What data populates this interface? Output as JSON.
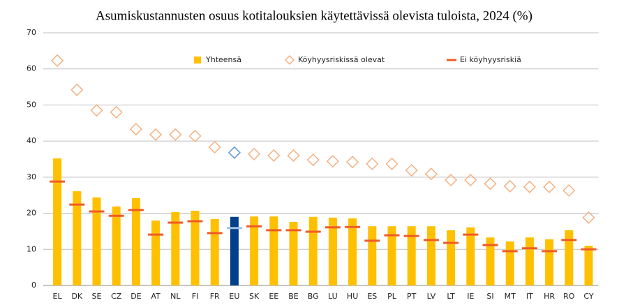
{
  "chart_data": {
    "type": "bar_dot",
    "title": "Asumiskustannusten osuus kotitalouksien käytettävissä olevista tuloista, 2024 (%)",
    "categories": [
      "EL",
      "DK",
      "SE",
      "CZ",
      "DE",
      "AT",
      "NL",
      "FI",
      "FR",
      "EU",
      "SK",
      "EE",
      "BE",
      "BG",
      "LU",
      "HU",
      "ES",
      "PL",
      "PT",
      "LV",
      "LT",
      "IE",
      "SI",
      "MT",
      "IT",
      "HR",
      "RO",
      "CY"
    ],
    "series": [
      {
        "name": "Yhteensä",
        "mark": "bar",
        "color": "#ffc000",
        "highlight_color": "#003f8a",
        "values": [
          35.2,
          26.1,
          24.4,
          21.9,
          24.2,
          18.0,
          20.3,
          20.7,
          18.4,
          19.0,
          19.1,
          19.1,
          17.6,
          19.0,
          18.8,
          18.6,
          16.4,
          16.4,
          16.4,
          16.4,
          15.3,
          16.1,
          13.3,
          12.2,
          13.3,
          12.8,
          15.3,
          11.0
        ]
      },
      {
        "name": "Köyhyysriskissä olevat",
        "mark": "diamond",
        "color": "#f4b183",
        "highlight_color": "#5b9bd5",
        "values": [
          62.3,
          54.2,
          48.5,
          48.0,
          43.3,
          41.8,
          41.8,
          41.4,
          38.3,
          36.8,
          36.4,
          36.0,
          36.0,
          34.8,
          34.4,
          34.2,
          33.7,
          33.7,
          31.9,
          30.9,
          29.2,
          29.2,
          28.2,
          27.5,
          27.3,
          27.3,
          26.3,
          18.8
        ]
      },
      {
        "name": "Ei köyhyysriskiä",
        "mark": "dash",
        "color": "#f05a28",
        "highlight_color": "#9dc3e6",
        "values": [
          28.8,
          22.4,
          20.5,
          19.3,
          20.9,
          14.1,
          17.4,
          17.8,
          14.5,
          15.9,
          16.4,
          15.3,
          15.3,
          14.9,
          16.1,
          16.2,
          12.4,
          13.9,
          13.7,
          12.6,
          11.8,
          14.1,
          11.2,
          9.5,
          10.3,
          9.5,
          12.6,
          10.0
        ]
      }
    ],
    "highlight_index": 9,
    "ylim": [
      0,
      70
    ],
    "yticks": [
      0,
      10,
      20,
      30,
      40,
      50,
      60,
      70
    ],
    "grid": true,
    "legend": "top"
  }
}
